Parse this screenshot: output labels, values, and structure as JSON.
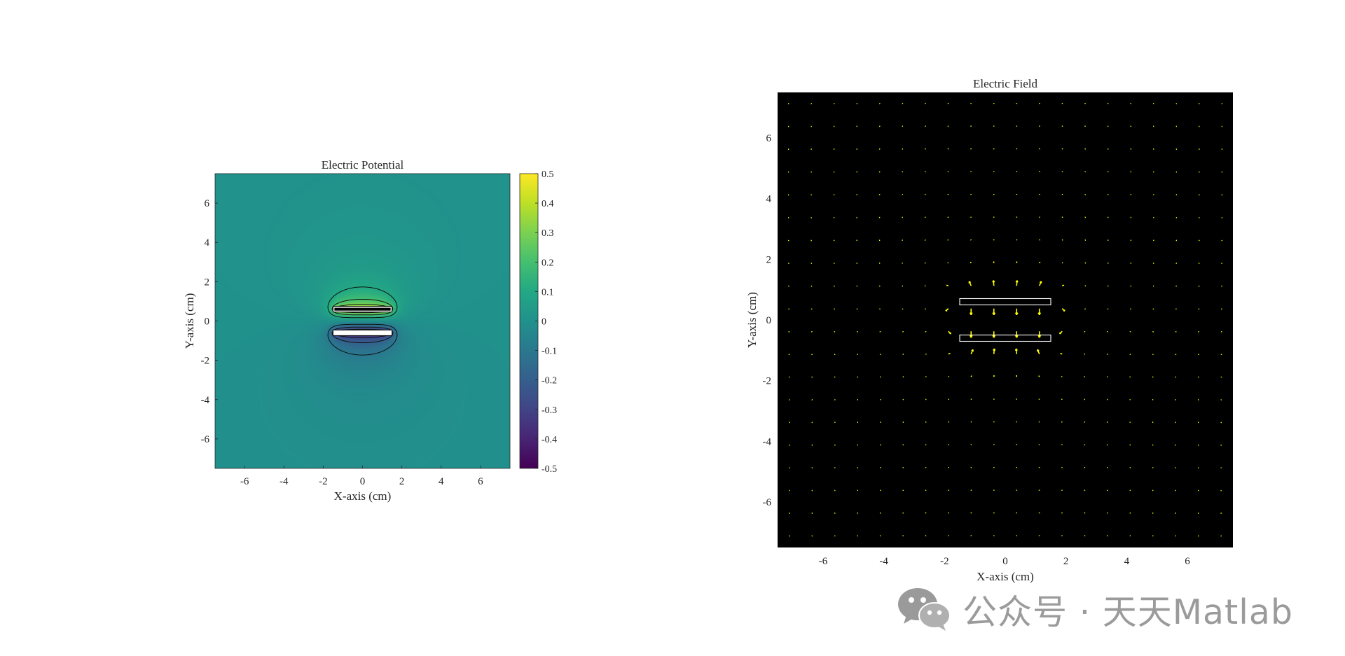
{
  "figure": {
    "watermark": "公众号 · 天天Matlab",
    "icon": "wechat-icon"
  },
  "chart_data": [
    {
      "type": "heatmap",
      "title": "Electric Potential",
      "xlabel": "X-axis (cm)",
      "ylabel": "Y-axis (cm)",
      "xlim": [
        -7.5,
        7.5
      ],
      "ylim": [
        -7.5,
        7.5
      ],
      "xticks": [
        -6,
        -4,
        -2,
        0,
        2,
        4,
        6
      ],
      "yticks": [
        -6,
        -4,
        -2,
        0,
        2,
        4,
        6
      ],
      "colormap": "viridis",
      "clim": [
        -0.5,
        0.5
      ],
      "colorbar_ticks": [
        -0.5,
        -0.4,
        -0.3,
        -0.2,
        -0.1,
        0,
        0.1,
        0.2,
        0.3,
        0.4,
        0.5
      ],
      "plates": [
        {
          "name": "top",
          "x": [
            -1.5,
            1.5
          ],
          "y": 0.6,
          "potential": 0.5
        },
        {
          "name": "bottom",
          "x": [
            -1.5,
            1.5
          ],
          "y": -0.6,
          "potential": -0.5
        }
      ],
      "contour_levels": [
        -0.4,
        -0.3,
        -0.2,
        -0.1,
        0.1,
        0.2,
        0.3,
        0.4
      ],
      "grid": false
    },
    {
      "type": "quiver",
      "title": "Electric Field",
      "xlabel": "X-axis (cm)",
      "ylabel": "Y-axis (cm)",
      "xlim": [
        -7.5,
        7.5
      ],
      "ylim": [
        -7.5,
        7.5
      ],
      "xticks": [
        -6,
        -4,
        -2,
        0,
        2,
        4,
        6
      ],
      "yticks": [
        -6,
        -4,
        -2,
        0,
        2,
        4,
        6
      ],
      "background": "#000000",
      "arrow_color": "#ffff00",
      "grid_step": 0.75,
      "plates": [
        {
          "name": "top",
          "x": [
            -1.5,
            1.5
          ],
          "y": 0.6
        },
        {
          "name": "bottom",
          "x": [
            -1.5,
            1.5
          ],
          "y": -0.6
        }
      ],
      "grid": false
    }
  ]
}
